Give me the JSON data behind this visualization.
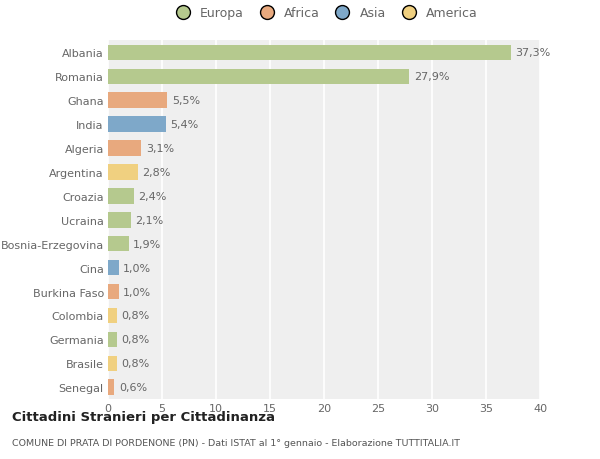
{
  "countries": [
    "Albania",
    "Romania",
    "Ghana",
    "India",
    "Algeria",
    "Argentina",
    "Croazia",
    "Ucraina",
    "Bosnia-Erzegovina",
    "Cina",
    "Burkina Faso",
    "Colombia",
    "Germania",
    "Brasile",
    "Senegal"
  ],
  "values": [
    37.3,
    27.9,
    5.5,
    5.4,
    3.1,
    2.8,
    2.4,
    2.1,
    1.9,
    1.0,
    1.0,
    0.8,
    0.8,
    0.8,
    0.6
  ],
  "labels": [
    "37,3%",
    "27,9%",
    "5,5%",
    "5,4%",
    "3,1%",
    "2,8%",
    "2,4%",
    "2,1%",
    "1,9%",
    "1,0%",
    "1,0%",
    "0,8%",
    "0,8%",
    "0,8%",
    "0,6%"
  ],
  "continents": [
    "Europa",
    "Europa",
    "Africa",
    "Asia",
    "Africa",
    "America",
    "Europa",
    "Europa",
    "Europa",
    "Asia",
    "Africa",
    "America",
    "Europa",
    "America",
    "Africa"
  ],
  "continent_colors": {
    "Europa": "#b5c98e",
    "Africa": "#e8a97e",
    "Asia": "#7ea8c9",
    "America": "#f0d080"
  },
  "legend_order": [
    "Europa",
    "Africa",
    "Asia",
    "America"
  ],
  "legend_colors": [
    "#b5c98e",
    "#e8a97e",
    "#7ea8c9",
    "#f0d080"
  ],
  "xlim": [
    0,
    40
  ],
  "xticks": [
    0,
    5,
    10,
    15,
    20,
    25,
    30,
    35,
    40
  ],
  "background_color": "#ffffff",
  "plot_background": "#efefef",
  "grid_color": "#ffffff",
  "title_line1": "Cittadini Stranieri per Cittadinanza",
  "title_line2": "COMUNE DI PRATA DI PORDENONE (PN) - Dati ISTAT al 1° gennaio - Elaborazione TUTTITALIA.IT",
  "bar_height": 0.65,
  "label_fontsize": 8.0,
  "tick_fontsize": 8.0,
  "legend_fontsize": 9.0
}
